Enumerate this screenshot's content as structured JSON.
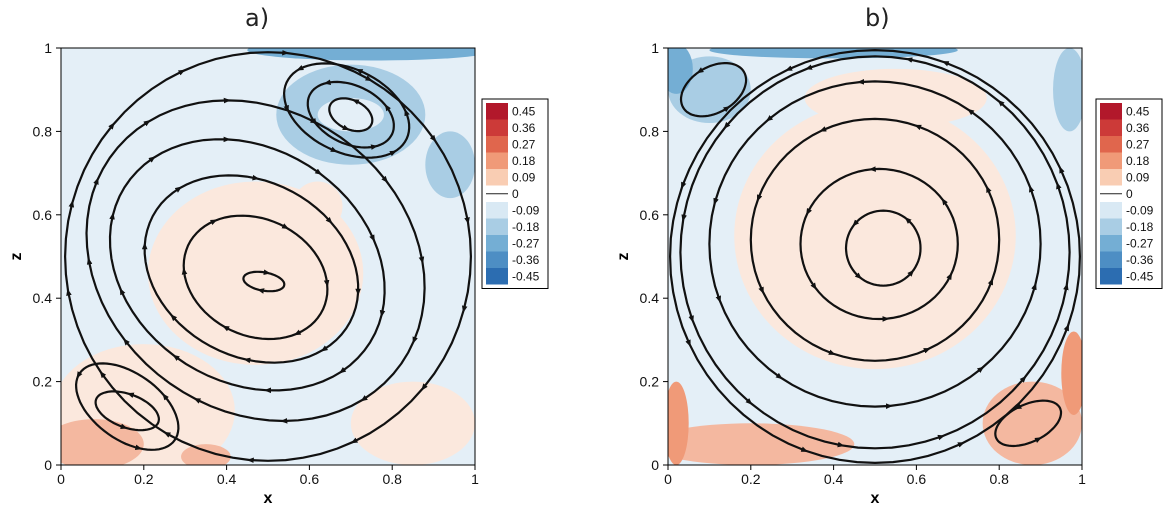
{
  "colors": {
    "levels": [
      {
        "v": 0.45,
        "c": "#b2182b"
      },
      {
        "v": 0.36,
        "c": "#cc3a38"
      },
      {
        "v": 0.27,
        "c": "#e0664d"
      },
      {
        "v": 0.18,
        "c": "#f09a78"
      },
      {
        "v": 0.09,
        "c": "#f9cdb3"
      },
      {
        "v": 0,
        "c": "#ffffff"
      },
      {
        "v": -0.09,
        "c": "#d9e9f4"
      },
      {
        "v": -0.18,
        "c": "#a9cde4"
      },
      {
        "v": -0.27,
        "c": "#74aed4"
      },
      {
        "v": -0.36,
        "c": "#4d8ec4"
      },
      {
        "v": -0.45,
        "c": "#2c6db1"
      }
    ],
    "warm_fill": "#fbe8dd",
    "cool_fill": "#e4eff7",
    "stream": "#111111"
  },
  "chart_data": [
    {
      "type": "contour",
      "panel": "a)",
      "title": "a)",
      "xlabel": "x",
      "ylabel": "z",
      "xlim": [
        0,
        1
      ],
      "ylim": [
        0,
        1
      ],
      "xticks": [
        "0",
        "0.2",
        "0.4",
        "0.6",
        "0.8",
        "1"
      ],
      "yticks": [
        "0",
        "0.2",
        "0.4",
        "0.6",
        "0.8",
        "1"
      ],
      "legend": [
        "0.45",
        "0.36",
        "0.27",
        "0.18",
        "0.09",
        "0",
        "-0.09",
        "-0.18",
        "-0.27",
        "-0.36",
        "-0.45"
      ],
      "vortices": [
        {
          "role": "primary",
          "cx": 0.49,
          "cy": 0.44,
          "direction": "counterclockwise"
        },
        {
          "role": "top-right secondary",
          "cx": 0.7,
          "cy": 0.84,
          "direction": "clockwise"
        },
        {
          "role": "bottom-left secondary",
          "cx": 0.16,
          "cy": 0.13,
          "direction": "clockwise"
        }
      ]
    },
    {
      "type": "contour",
      "panel": "b)",
      "title": "b)",
      "xlabel": "x",
      "ylabel": "z",
      "xlim": [
        0,
        1
      ],
      "ylim": [
        0,
        1
      ],
      "xticks": [
        "0",
        "0.2",
        "0.4",
        "0.6",
        "0.8",
        "1"
      ],
      "yticks": [
        "0",
        "0.2",
        "0.4",
        "0.6",
        "0.8",
        "1"
      ],
      "legend": [
        "0.45",
        "0.36",
        "0.27",
        "0.18",
        "0.09",
        "0",
        "-0.09",
        "-0.18",
        "-0.27",
        "-0.36",
        "-0.45"
      ],
      "vortices": [
        {
          "role": "primary",
          "cx": 0.52,
          "cy": 0.52,
          "direction": "clockwise"
        },
        {
          "role": "top-left secondary",
          "cx": 0.1,
          "cy": 0.9,
          "direction": "clockwise"
        },
        {
          "role": "bottom-right secondary",
          "cx": 0.87,
          "cy": 0.1,
          "direction": "clockwise"
        }
      ]
    }
  ]
}
